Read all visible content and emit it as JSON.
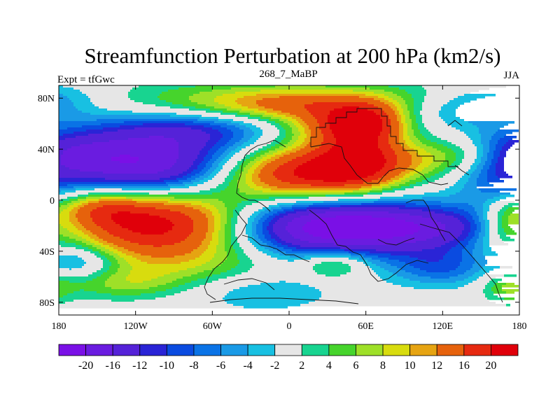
{
  "chart_data": {
    "type": "heatmap",
    "title": "Streamfunction Perturbation at 200 hPa (km2/s)",
    "left_string": "Expt = tfGwc",
    "center_string": "268_7_MaBP",
    "right_string": "JJA",
    "x_ticks": [
      "180",
      "120W",
      "60W",
      "0",
      "60E",
      "120E",
      "180"
    ],
    "y_ticks": [
      "80N",
      "40N",
      "0",
      "40S",
      "80S"
    ],
    "x_range": [
      -180,
      180
    ],
    "y_range": [
      -90,
      90
    ],
    "colorbar": {
      "labels": [
        "-20",
        "-16",
        "-12",
        "-10",
        "-8",
        "-6",
        "-4",
        "-2",
        "2",
        "4",
        "6",
        "8",
        "10",
        "12",
        "16",
        "20"
      ],
      "colors": [
        "#7a10e6",
        "#6a1ce0",
        "#5522d8",
        "#2a24d6",
        "#0a4be0",
        "#0a73e6",
        "#1a9ae6",
        "#18c0e2",
        "#e6e6e6",
        "#18d490",
        "#46d42c",
        "#9ee028",
        "#d8dc0e",
        "#e6a412",
        "#e6620c",
        "#e62a10",
        "#e0000a"
      ]
    },
    "field": [
      {
        "lon": 0,
        "lat": 78,
        "amp": 9,
        "rx": 95,
        "ry": 11
      },
      {
        "lon": 5,
        "lat": 73,
        "amp": 6,
        "rx": 50,
        "ry": 8
      },
      {
        "lon": 60,
        "lat": 60,
        "amp": 16,
        "rx": 22,
        "ry": 11
      },
      {
        "lon": 35,
        "lat": 57,
        "amp": 10,
        "rx": 30,
        "ry": 10
      },
      {
        "lon": 55,
        "lat": 38,
        "amp": 8,
        "rx": 26,
        "ry": 10
      },
      {
        "lon": 8,
        "lat": 20,
        "amp": 21,
        "rx": 42,
        "ry": 16
      },
      {
        "lon": 55,
        "lat": 22,
        "amp": 10,
        "rx": 25,
        "ry": 14
      },
      {
        "lon": 100,
        "lat": 30,
        "amp": 6,
        "rx": 36,
        "ry": 12
      },
      {
        "lon": 140,
        "lat": 36,
        "amp": 5,
        "rx": 25,
        "ry": 9
      },
      {
        "lon": 168,
        "lat": -18,
        "amp": 7,
        "rx": 14,
        "ry": 14
      },
      {
        "lon": -112,
        "lat": 25,
        "amp": -20,
        "rx": 50,
        "ry": 18
      },
      {
        "lon": -178,
        "lat": 38,
        "amp": -8,
        "rx": 34,
        "ry": 12
      },
      {
        "lon": -80,
        "lat": 55,
        "amp": -10,
        "rx": 55,
        "ry": 12
      },
      {
        "lon": 140,
        "lat": 72,
        "amp": -7,
        "rx": 40,
        "ry": 10
      },
      {
        "lon": 165,
        "lat": 10,
        "amp": -7,
        "rx": 25,
        "ry": 20
      },
      {
        "lon": -98,
        "lat": -18,
        "amp": 24,
        "rx": 56,
        "ry": 20
      },
      {
        "lon": -150,
        "lat": -5,
        "amp": 8,
        "rx": 25,
        "ry": 10
      },
      {
        "lon": 22,
        "lat": -20,
        "amp": -24,
        "rx": 56,
        "ry": 18
      },
      {
        "lon": 112,
        "lat": -22,
        "amp": -12,
        "rx": 45,
        "ry": 12
      },
      {
        "lon": 120,
        "lat": -52,
        "amp": -8,
        "rx": 28,
        "ry": 11
      },
      {
        "lon": -165,
        "lat": -48,
        "amp": -8,
        "rx": 22,
        "ry": 10
      },
      {
        "lon": -60,
        "lat": -50,
        "amp": 4,
        "rx": 60,
        "ry": 12
      },
      {
        "lon": -130,
        "lat": -65,
        "amp": 6,
        "rx": 35,
        "ry": 9
      },
      {
        "lon": 35,
        "lat": -50,
        "amp": 8,
        "rx": 18,
        "ry": 8
      },
      {
        "lon": -20,
        "lat": -72,
        "amp": -4,
        "rx": 40,
        "ry": 11
      },
      {
        "lon": 170,
        "lat": -68,
        "amp": 6,
        "rx": 14,
        "ry": 9
      },
      {
        "lon": -178,
        "lat": 82,
        "amp": -3,
        "rx": 30,
        "ry": 8
      }
    ]
  }
}
